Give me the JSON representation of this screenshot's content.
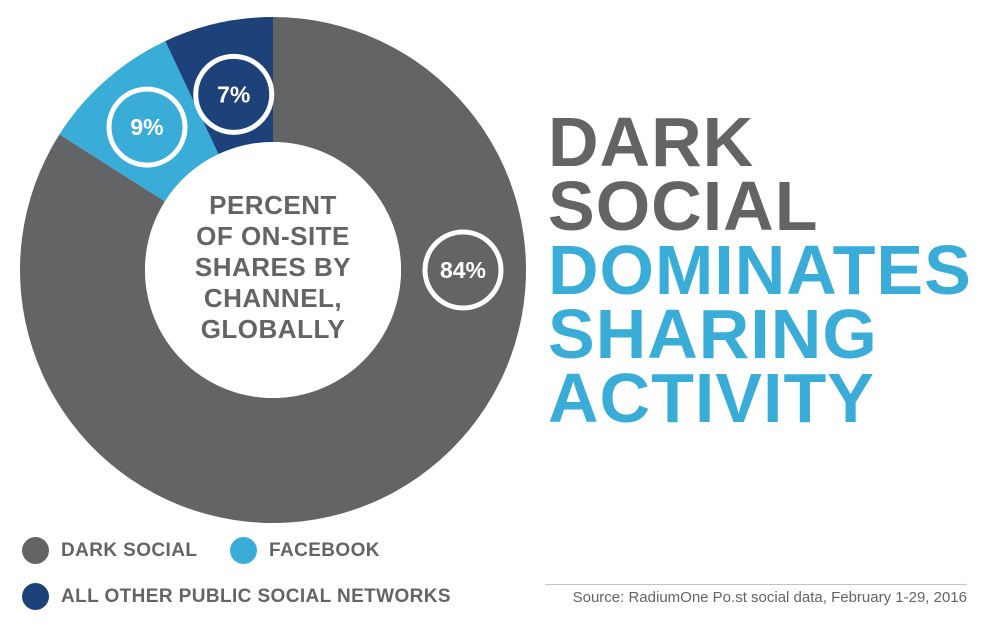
{
  "chart_data": {
    "type": "pie",
    "title": "PERCENT OF ON-SITE SHARES BY CHANNEL, GLOBALLY",
    "title_lines": [
      "PERCENT",
      "OF ON-SITE",
      "SHARES BY",
      "CHANNEL,",
      "GLOBALLY"
    ],
    "series": [
      {
        "name": "DARK SOCIAL",
        "value": 84,
        "label": "84%",
        "color": "#636466"
      },
      {
        "name": "FACEBOOK",
        "value": 9,
        "label": "9%",
        "color": "#39acd8"
      },
      {
        "name": "ALL OTHER PUBLIC SOCIAL NETWORKS",
        "value": 7,
        "label": "7%",
        "color": "#1d4179"
      }
    ],
    "legend_placement": "bottom-left"
  },
  "headline": {
    "lines": [
      {
        "text": "DARK",
        "color": "#636466"
      },
      {
        "text": "SOCIAL",
        "color": "#636466"
      },
      {
        "text": "DOMINATES",
        "color": "#39acd8"
      },
      {
        "text": "SHARING",
        "color": "#39acd8"
      },
      {
        "text": "ACTIVITY",
        "color": "#39acd8"
      }
    ]
  },
  "source": "Source: RadiumOne Po.st social data, February 1-29, 2016"
}
